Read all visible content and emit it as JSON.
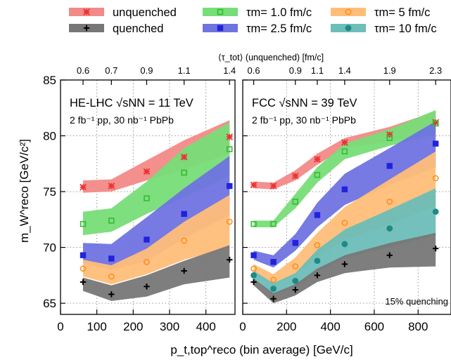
{
  "legend": [
    {
      "label": "unquenched",
      "series": "unquenched"
    },
    {
      "label": "τm= 1.0 fm/c",
      "series": "tau1"
    },
    {
      "label": "τm= 5 fm/c",
      "series": "tau5"
    },
    {
      "label": "quenched",
      "series": "quenched"
    },
    {
      "label": "τm= 2.5 fm/c",
      "series": "tau25"
    },
    {
      "label": "τm= 10 fm/c",
      "series": "tau10"
    }
  ],
  "axes": {
    "ylabel": "m_W^reco [GeV/c²]",
    "xlabel": "p_t,top^reco (bin average) [GeV/c]",
    "top_label": "⟨τ_tot⟩ (unquenched) [fm/c]"
  },
  "chart_data": [
    {
      "type": "line",
      "panel": "left",
      "title": "HE-LHC √sNN = 11 TeV",
      "subtitle": "2 fb⁻¹ pp, 30 nb⁻¹ PbPb",
      "xlim": [
        0,
        480
      ],
      "ylim": [
        64,
        85
      ],
      "xticks": [
        0,
        100,
        200,
        300,
        400
      ],
      "yticks": [
        65,
        70,
        75,
        80,
        85
      ],
      "top_axis_ticks": [
        {
          "x": 62,
          "label": "0.6"
        },
        {
          "x": 140,
          "label": "0.7"
        },
        {
          "x": 237,
          "label": "0.9"
        },
        {
          "x": 340,
          "label": "1.1"
        },
        {
          "x": 465,
          "label": "1.4"
        }
      ],
      "x": [
        62,
        140,
        237,
        340,
        465
      ],
      "series": [
        {
          "name": "unquenched",
          "color": "#ee3333",
          "band": "#f28a88",
          "y": [
            75.4,
            75.5,
            76.8,
            78.1,
            79.9
          ],
          "band_lo": [
            74.9,
            75.0,
            76.0,
            77.0,
            78.4
          ],
          "band_hi": [
            76.0,
            76.1,
            77.8,
            79.6,
            81.4
          ]
        },
        {
          "name": "τm= 1.0 fm/c",
          "color": "#33bb33",
          "band": "#77dd77",
          "y": [
            72.1,
            72.4,
            74.4,
            76.7,
            78.8
          ],
          "band_lo": [
            71.1,
            71.4,
            73.0,
            74.5,
            76.4
          ],
          "band_hi": [
            73.2,
            73.5,
            75.9,
            78.9,
            81.2
          ]
        },
        {
          "name": "τm= 2.5 fm/c",
          "color": "#2222dd",
          "band": "#6f73e0",
          "y": [
            69.3,
            69.0,
            70.7,
            73.0,
            75.5
          ],
          "band_lo": [
            68.6,
            68.0,
            68.8,
            70.8,
            72.9
          ],
          "band_hi": [
            70.4,
            70.3,
            72.7,
            75.3,
            78.2
          ]
        },
        {
          "name": "τm= 5 fm/c",
          "color": "#ff8c1a",
          "band": "#ffbe78",
          "y": [
            68.1,
            67.4,
            68.7,
            70.6,
            72.3
          ],
          "band_lo": [
            67.4,
            66.7,
            67.6,
            68.9,
            70.0
          ],
          "band_hi": [
            68.9,
            68.4,
            69.9,
            72.3,
            74.7
          ]
        },
        {
          "name": "quenched",
          "color": "#000000",
          "band": "#777777",
          "y": [
            66.9,
            65.8,
            66.5,
            67.9,
            68.9
          ],
          "band_lo": [
            66.1,
            65.2,
            65.6,
            66.7,
            67.3
          ],
          "band_hi": [
            67.3,
            66.6,
            67.5,
            68.8,
            70.2
          ]
        }
      ]
    },
    {
      "type": "line",
      "panel": "right",
      "title": "FCC √sNN = 39 TeV",
      "subtitle": "2 fb⁻¹ pp, 30 nb⁻¹ PbPb",
      "annotation": "15% quenching",
      "xlim": [
        0,
        950
      ],
      "ylim": [
        64,
        85
      ],
      "xticks": [
        0,
        200,
        400,
        600,
        800
      ],
      "yticks": [
        65,
        70,
        75,
        80,
        85
      ],
      "top_axis_ticks": [
        {
          "x": 50,
          "label": "0.6"
        },
        {
          "x": 240,
          "label": "0.9"
        },
        {
          "x": 340,
          "label": "1.1"
        },
        {
          "x": 465,
          "label": "1.4"
        },
        {
          "x": 670,
          "label": "1.9"
        },
        {
          "x": 880,
          "label": "2.3"
        }
      ],
      "x": [
        50,
        140,
        240,
        340,
        465,
        670,
        880
      ],
      "series": [
        {
          "name": "unquenched",
          "color": "#ee3333",
          "band": "#f28a88",
          "y": [
            75.6,
            75.5,
            76.4,
            77.9,
            79.4,
            80.1,
            81.2
          ],
          "band_lo": [
            75.3,
            75.2,
            76.0,
            77.4,
            78.9,
            79.5,
            80.4
          ],
          "band_hi": [
            75.9,
            75.8,
            76.9,
            78.4,
            79.8,
            80.8,
            82.2
          ]
        },
        {
          "name": "τm= 1.0 fm/c",
          "color": "#33bb33",
          "band": "#77dd77",
          "y": [
            72.1,
            72.1,
            74.1,
            76.5,
            78.6,
            79.8,
            81.1
          ],
          "band_lo": [
            71.8,
            71.8,
            73.5,
            75.8,
            77.9,
            79.1,
            80.1
          ],
          "band_hi": [
            72.4,
            72.4,
            74.8,
            77.2,
            79.3,
            80.6,
            82.3
          ]
        },
        {
          "name": "τm= 2.5 fm/c",
          "color": "#2222dd",
          "band": "#6f73e0",
          "y": [
            69.3,
            68.7,
            70.4,
            72.9,
            75.2,
            77.3,
            79.3
          ],
          "band_lo": [
            68.9,
            68.2,
            69.7,
            71.8,
            73.8,
            75.6,
            77.2
          ],
          "band_hi": [
            69.7,
            69.3,
            71.2,
            74.0,
            76.6,
            78.9,
            81.3
          ]
        },
        {
          "name": "τm= 5 fm/c",
          "color": "#ff8c1a",
          "band": "#ffbe78",
          "y": [
            68.1,
            67.1,
            68.3,
            70.2,
            72.2,
            74.1,
            76.2
          ],
          "band_lo": [
            67.7,
            66.6,
            67.6,
            69.1,
            70.7,
            72.1,
            73.7
          ],
          "band_hi": [
            68.5,
            67.6,
            69.1,
            71.3,
            73.6,
            76.1,
            78.6
          ]
        },
        {
          "name": "τm= 10 fm/c",
          "color": "#1f8a85",
          "band": "#6dbdb8",
          "y": [
            67.5,
            66.3,
            67.0,
            68.8,
            70.3,
            71.7,
            73.2
          ],
          "band_lo": [
            67.1,
            65.8,
            66.4,
            67.8,
            69.1,
            70.0,
            71.1
          ],
          "band_hi": [
            67.9,
            66.8,
            67.7,
            69.8,
            71.6,
            73.4,
            75.3
          ]
        },
        {
          "name": "quenched",
          "color": "#000000",
          "band": "#777777",
          "y": [
            66.9,
            65.4,
            66.2,
            67.5,
            68.5,
            69.3,
            69.9
          ],
          "band_lo": [
            66.6,
            65.0,
            65.7,
            66.9,
            67.7,
            68.2,
            68.3
          ],
          "band_hi": [
            67.2,
            65.9,
            66.7,
            68.1,
            69.3,
            70.4,
            71.3
          ]
        }
      ]
    }
  ]
}
